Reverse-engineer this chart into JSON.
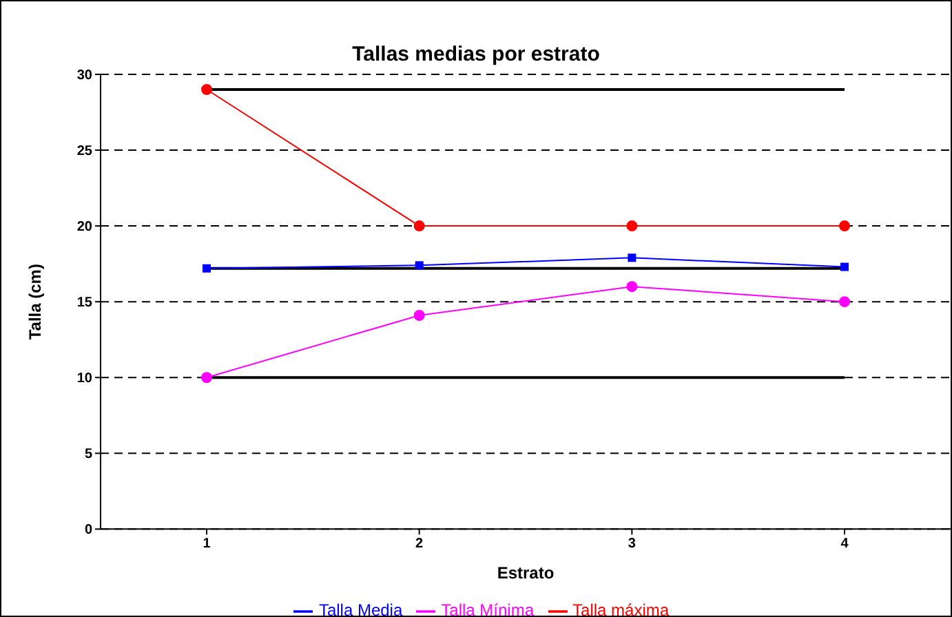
{
  "chart_data": {
    "type": "line",
    "title": "Tallas medias por estrato",
    "xlabel": "Estrato",
    "ylabel": "Talla (cm)",
    "categories": [
      "1",
      "2",
      "3",
      "4"
    ],
    "ylim": [
      0,
      30
    ],
    "yticks": [
      0,
      5,
      10,
      15,
      20,
      25,
      30
    ],
    "grid": "y",
    "legend": "bottom",
    "line_style": "solid",
    "series": [
      {
        "color": "#000000",
        "values": [
          29,
          29,
          29,
          29
        ],
        "marker": "none"
      },
      {
        "color": "#000000",
        "values": [
          17.2,
          17.2,
          17.2,
          17.2
        ],
        "marker": "none"
      },
      {
        "color": "#000000",
        "values": [
          10,
          10,
          10,
          10
        ],
        "marker": "none"
      },
      {
        "name": "Talla Mínima",
        "color": "#ff00ff",
        "values": [
          10,
          14.1,
          16,
          15
        ],
        "marker": "circle"
      },
      {
        "name": "Talla Media",
        "color": "#0000ff",
        "values": [
          17.2,
          17.4,
          17.9,
          17.3
        ],
        "marker": "square"
      },
      {
        "name": "Talla máxima",
        "color": "#ff0000",
        "values": [
          29,
          20,
          20,
          20
        ],
        "marker": "circle"
      }
    ]
  }
}
